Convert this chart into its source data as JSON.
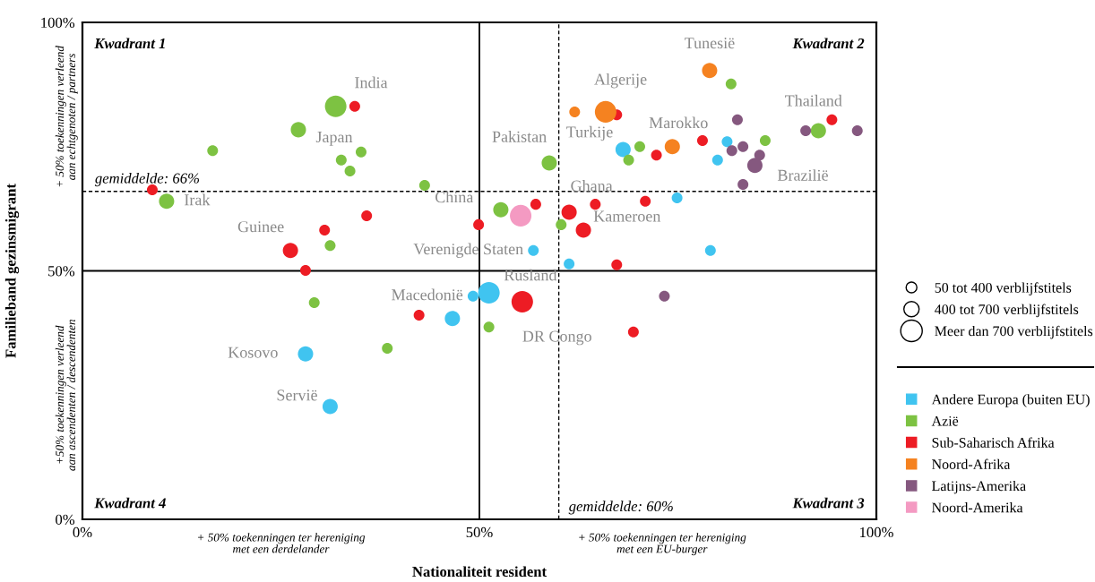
{
  "chart_data": {
    "type": "bubble",
    "xlabel": "Nationaliteit resident",
    "ylabel": "Familieband gezinsmigrant",
    "xlim": [
      0,
      100
    ],
    "ylim": [
      0,
      100
    ],
    "xticks": [
      {
        "value": 0,
        "label": "0%"
      },
      {
        "value": 50,
        "label": "50%"
      },
      {
        "value": 100,
        "label": "100%"
      }
    ],
    "yticks": [
      {
        "value": 0,
        "label": "0%"
      },
      {
        "value": 50,
        "label": "50%"
      },
      {
        "value": 100,
        "label": "100%"
      }
    ],
    "grid": false,
    "legend": "right",
    "marker": "circle",
    "size_legend": [
      {
        "value": 0.25,
        "label": "50 tot 400 verblijfstitels"
      },
      {
        "value": 0.5,
        "label": "400 tot 700 verblijfstitels"
      },
      {
        "value": 1,
        "label": "Meer dan 700 verblijfstitels"
      }
    ],
    "series": [
      {
        "name": "Andere Europa (buiten EU)",
        "color": "#40c4f0",
        "x": [
          68.1,
          81.2,
          80.0,
          74.9,
          61.3,
          56.8,
          79.1,
          49.2,
          51.2,
          46.6,
          28.1,
          31.2
        ],
        "values": [
          74.4,
          76.0,
          72.3,
          64.7,
          51.4,
          54.1,
          54.1,
          44.9,
          45.6,
          40.4,
          33.3,
          22.7
        ],
        "sizes": [
          0.5,
          0.25,
          0.25,
          0.25,
          0.25,
          0.25,
          0.25,
          0.25,
          1,
          0.5,
          0.5,
          0.5
        ]
      },
      {
        "name": "Azië",
        "color": "#7dc242",
        "x": [
          31.9,
          27.2,
          16.4,
          32.6,
          35.1,
          33.7,
          43.1,
          10.6,
          31.2,
          29.2,
          38.4,
          52.7,
          58.8,
          60.3,
          51.2,
          81.7,
          70.2,
          68.8,
          86.0,
          92.7
        ],
        "values": [
          83.1,
          78.4,
          74.2,
          72.3,
          73.9,
          70.1,
          67.2,
          64.0,
          55.1,
          43.6,
          34.4,
          62.3,
          71.7,
          59.3,
          38.7,
          87.6,
          75.0,
          72.3,
          76.2,
          78.2
        ],
        "sizes": [
          1,
          0.5,
          0.25,
          0.25,
          0.25,
          0.25,
          0.25,
          0.5,
          0.25,
          0.25,
          0.25,
          0.5,
          0.5,
          0.25,
          0.25,
          0.25,
          0.25,
          0.25,
          0.25,
          0.5
        ]
      },
      {
        "name": "Sub-Saharisch Afrika",
        "color": "#ed1c24",
        "x": [
          8.8,
          34.3,
          35.8,
          30.5,
          26.2,
          28.1,
          42.4,
          49.9,
          57.1,
          55.4,
          61.3,
          64.6,
          63.1,
          70.9,
          67.3,
          69.4,
          67.3,
          72.3,
          78.1,
          94.4
        ],
        "values": [
          66.3,
          83.1,
          61.1,
          58.2,
          54.1,
          50.1,
          41.1,
          59.3,
          63.4,
          43.8,
          61.8,
          63.4,
          58.2,
          64.0,
          51.2,
          37.7,
          81.4,
          73.3,
          76.2,
          80.4
        ],
        "sizes": [
          0.25,
          0.25,
          0.25,
          0.25,
          0.5,
          0.25,
          0.25,
          0.25,
          0.25,
          1,
          0.5,
          0.25,
          0.5,
          0.25,
          0.25,
          0.25,
          0.25,
          0.25,
          0.25,
          0.25
        ]
      },
      {
        "name": "Noord-Afrika",
        "color": "#f58220",
        "x": [
          62.0,
          65.9,
          74.3,
          79.0
        ],
        "values": [
          82.0,
          82.0,
          75.0,
          90.3
        ],
        "sizes": [
          0.25,
          1,
          0.5,
          0.5
        ]
      },
      {
        "name": "Latijns-Amerika",
        "color": "#85587f",
        "x": [
          82.5,
          91.1,
          97.6,
          81.8,
          83.2,
          85.3,
          84.7,
          83.2,
          73.3
        ],
        "values": [
          80.4,
          78.2,
          78.2,
          74.2,
          75.0,
          73.3,
          71.2,
          67.4,
          44.9
        ],
        "sizes": [
          0.25,
          0.25,
          0.25,
          0.25,
          0.25,
          0.25,
          0.5,
          0.25,
          0.25
        ]
      },
      {
        "name": "Noord-Amerika",
        "color": "#f49ac2",
        "x": [
          55.2
        ],
        "values": [
          61.1
        ],
        "sizes": [
          1
        ]
      }
    ],
    "ref_lines": [
      {
        "axis": "x",
        "value": 50,
        "color": "#000000",
        "line_style": "solid"
      },
      {
        "axis": "y",
        "value": 50,
        "color": "#000000",
        "line_style": "solid"
      },
      {
        "axis": "x",
        "value": 60,
        "label": "gemiddelde: 60%",
        "color": "#000000",
        "line_style": "dashed"
      },
      {
        "axis": "y",
        "value": 66,
        "label": "gemiddelde: 66%",
        "color": "#000000",
        "line_style": "dashed"
      }
    ],
    "annotations": [
      "Kwadrant 1",
      "Kwadrant 2",
      "Kwadrant 3",
      "Kwadrant 4",
      "+ 50% toekenningen verleend\naan echtgenoten / partners",
      "+50% toekenningen verleend\naan ascendenten / descendenten",
      "+ 50% toekenningen ter hereniging\nmet een derdelander",
      "+ 50% toekenningen ter hereniging\nmet een EU-burger",
      {
        "text": "India",
        "x": 31.9,
        "y": 83.1
      },
      {
        "text": "Japan",
        "x": 27.2,
        "y": 78.4
      },
      {
        "text": "Irak",
        "x": 10.6,
        "y": 64.0
      },
      {
        "text": "Guinee",
        "x": 26.2,
        "y": 54.1
      },
      {
        "text": "China",
        "x": 52.7,
        "y": 62.3
      },
      {
        "text": "Pakistan",
        "x": 58.8,
        "y": 71.7
      },
      {
        "text": "Turkije",
        "x": 68.1,
        "y": 74.4
      },
      {
        "text": "Algerije",
        "x": 65.9,
        "y": 82.0
      },
      {
        "text": "Marokko",
        "x": 74.3,
        "y": 75.0
      },
      {
        "text": "Tunesië",
        "x": 79.0,
        "y": 90.3
      },
      {
        "text": "Thailand",
        "x": 92.7,
        "y": 78.2
      },
      {
        "text": "Brazilië",
        "x": 84.7,
        "y": 71.2
      },
      {
        "text": "Ghana",
        "x": 61.3,
        "y": 61.8
      },
      {
        "text": "Kameroen",
        "x": 63.1,
        "y": 58.2
      },
      {
        "text": "Verenigde Staten",
        "x": 55.2,
        "y": 61.1
      },
      {
        "text": "Rusland",
        "x": 51.2,
        "y": 45.6
      },
      {
        "text": "Macedonië",
        "x": 49.2,
        "y": 44.9
      },
      {
        "text": "DR Congo",
        "x": 55.4,
        "y": 43.8
      },
      {
        "text": "Kosovo",
        "x": 28.1,
        "y": 33.3
      },
      {
        "text": "Servië",
        "x": 31.2,
        "y": 22.7
      }
    ]
  }
}
